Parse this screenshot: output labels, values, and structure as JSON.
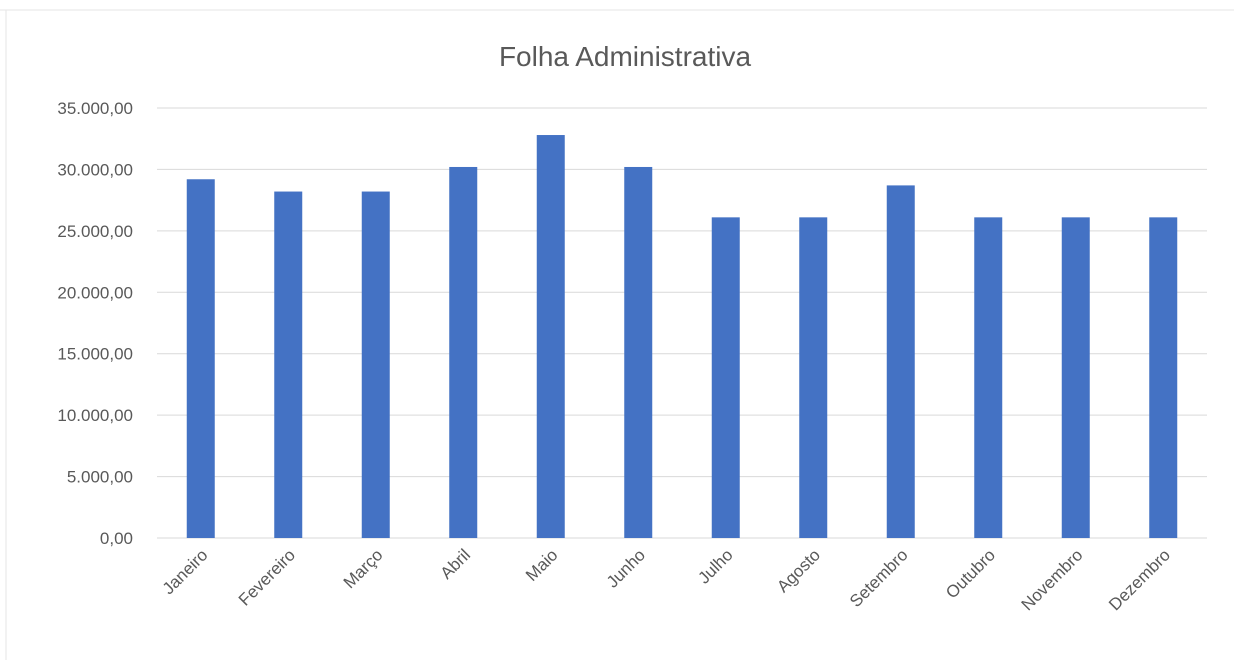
{
  "chart_data": {
    "type": "bar",
    "title": "Folha Administrativa",
    "xlabel": "",
    "ylabel": "",
    "categories": [
      "Janeiro",
      "Fevereiro",
      "Março",
      "Abril",
      "Maio",
      "Junho",
      "Julho",
      "Agosto",
      "Setembro",
      "Outubro",
      "Novembro",
      "Dezembro"
    ],
    "values": [
      29200,
      28200,
      28200,
      30200,
      32800,
      30200,
      26100,
      26100,
      28700,
      26100,
      26100,
      26100
    ],
    "ylim": [
      0,
      35000
    ],
    "y_ticks": [
      "0,00",
      "5.000,00",
      "10.000,00",
      "15.000,00",
      "20.000,00",
      "25.000,00",
      "30.000,00",
      "35.000,00"
    ],
    "grid": true,
    "legend": "none"
  },
  "colors": {
    "bar": "#4472C4",
    "gridline": "#D9D9D9",
    "axis_text": "#595959",
    "title_text": "#595959"
  }
}
